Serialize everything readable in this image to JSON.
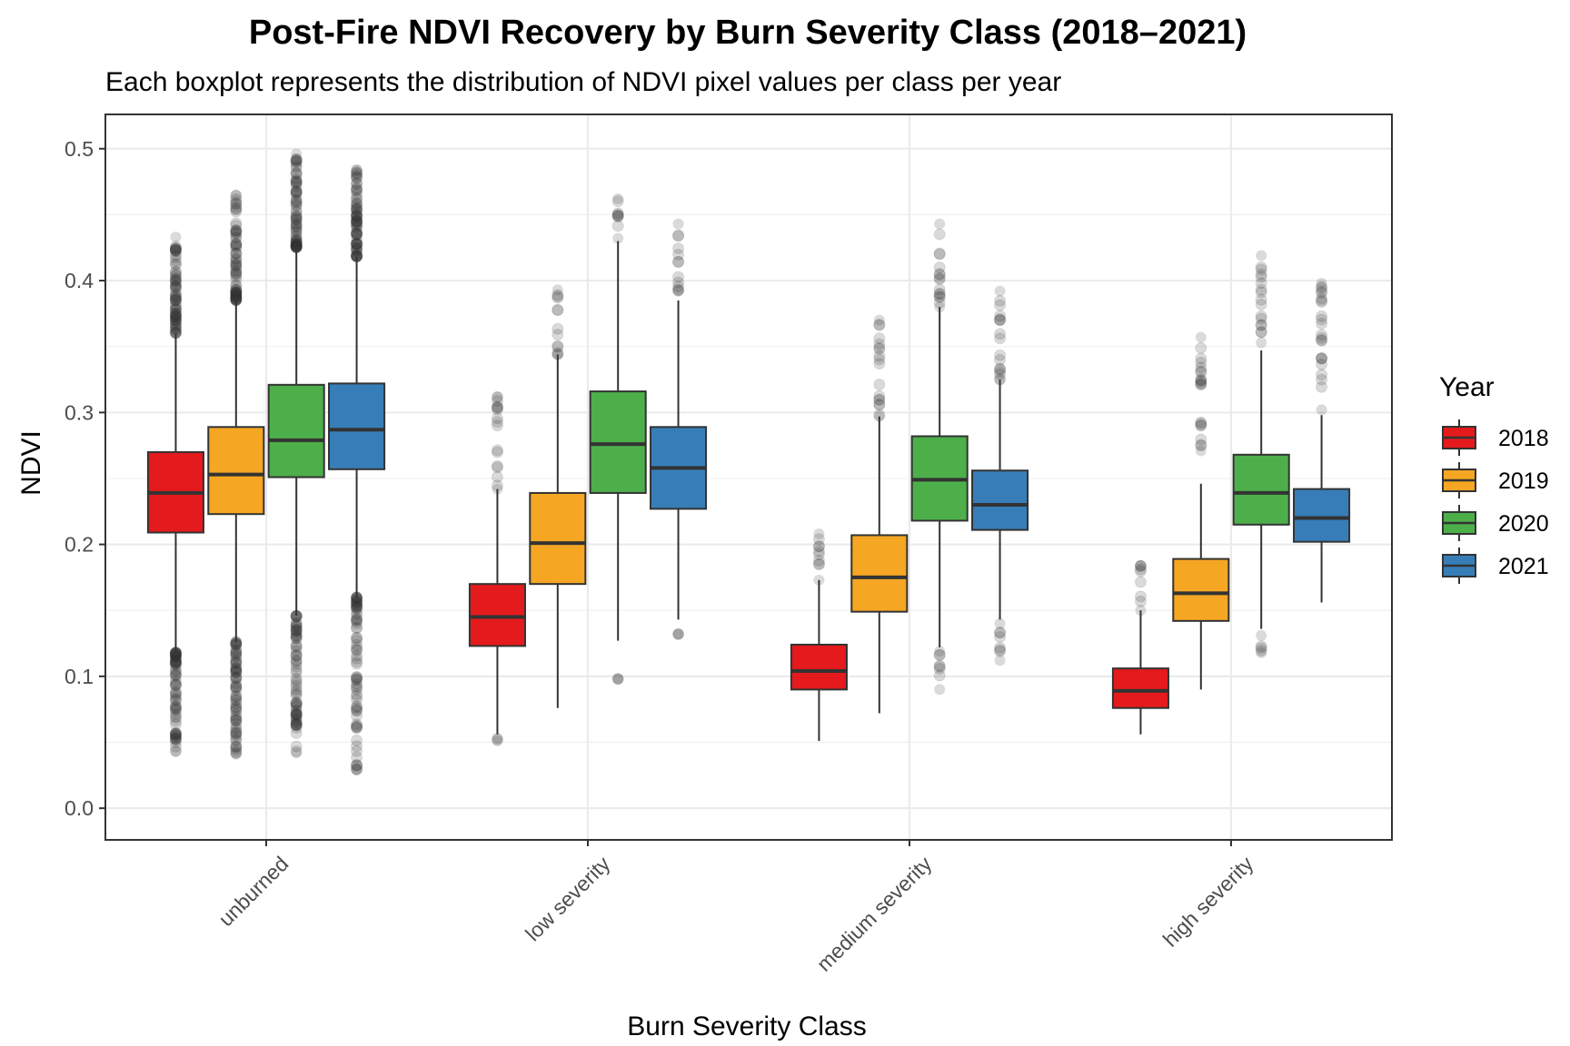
{
  "chart_data": {
    "type": "boxplot",
    "title": "Post-Fire NDVI Recovery by Burn Severity Class (2018–2021)",
    "subtitle": "Each boxplot represents the distribution of NDVI pixel values per class per year",
    "xlabel": "Burn Severity Class",
    "ylabel": "NDVI",
    "ylim": [
      -0.024,
      0.526
    ],
    "y_ticks": [
      0.0,
      0.1,
      0.2,
      0.3,
      0.4,
      0.5
    ],
    "y_tick_labels": [
      "0.0",
      "0.1",
      "0.2",
      "0.3",
      "0.4",
      "0.5"
    ],
    "grid": true,
    "categories": [
      "unburned",
      "low severity",
      "medium severity",
      "high severity"
    ],
    "legend": {
      "title": "Year",
      "position": "right",
      "entries": [
        {
          "label": "2018",
          "color": "#E41A1C"
        },
        {
          "label": "2019",
          "color": "#F5A623"
        },
        {
          "label": "2020",
          "color": "#4DAF4A"
        },
        {
          "label": "2021",
          "color": "#377EB8"
        }
      ]
    },
    "series": [
      {
        "name": "2018",
        "color": "#E41A1C",
        "boxes": [
          {
            "category": "unburned",
            "whisker_low": 0.118,
            "q1": 0.209,
            "median": 0.239,
            "q3": 0.27,
            "whisker_high": 0.36,
            "outliers_high_range": [
              0.36,
              0.433
            ],
            "outliers_low_range": [
              0.043,
              0.118
            ]
          },
          {
            "category": "low severity",
            "whisker_low": 0.056,
            "q1": 0.123,
            "median": 0.145,
            "q3": 0.17,
            "whisker_high": 0.242,
            "outliers_high_range": [
              0.242,
              0.312
            ],
            "outliers_low_range": [
              0.051,
              0.053
            ]
          },
          {
            "category": "medium severity",
            "whisker_low": 0.051,
            "q1": 0.09,
            "median": 0.104,
            "q3": 0.124,
            "whisker_high": 0.173,
            "outliers_high_range": [
              0.173,
              0.208
            ],
            "outliers_low_range": []
          },
          {
            "category": "high severity",
            "whisker_low": 0.056,
            "q1": 0.076,
            "median": 0.089,
            "q3": 0.106,
            "whisker_high": 0.15,
            "outliers_high_range": [
              0.15,
              0.184
            ],
            "outliers_low_range": []
          }
        ]
      },
      {
        "name": "2019",
        "color": "#F5A623",
        "boxes": [
          {
            "category": "unburned",
            "whisker_low": 0.126,
            "q1": 0.223,
            "median": 0.253,
            "q3": 0.289,
            "whisker_high": 0.385,
            "outliers_high_range": [
              0.385,
              0.465
            ],
            "outliers_low_range": [
              0.041,
              0.126
            ]
          },
          {
            "category": "low severity",
            "whisker_low": 0.076,
            "q1": 0.17,
            "median": 0.201,
            "q3": 0.239,
            "whisker_high": 0.344,
            "outliers_high_range": [
              0.344,
              0.393
            ],
            "outliers_low_range": []
          },
          {
            "category": "medium severity",
            "whisker_low": 0.072,
            "q1": 0.149,
            "median": 0.175,
            "q3": 0.207,
            "whisker_high": 0.297,
            "outliers_high_range": [
              0.297,
              0.37
            ],
            "outliers_low_range": []
          },
          {
            "category": "high severity",
            "whisker_low": 0.09,
            "q1": 0.142,
            "median": 0.163,
            "q3": 0.189,
            "whisker_high": 0.246,
            "outliers_high_range": [
              0.271,
              0.357
            ],
            "outliers_low_range": []
          }
        ]
      },
      {
        "name": "2020",
        "color": "#4DAF4A",
        "boxes": [
          {
            "category": "unburned",
            "whisker_low": 0.146,
            "q1": 0.251,
            "median": 0.279,
            "q3": 0.321,
            "whisker_high": 0.425,
            "outliers_high_range": [
              0.425,
              0.496
            ],
            "outliers_low_range": [
              0.042,
              0.146
            ]
          },
          {
            "category": "low severity",
            "whisker_low": 0.127,
            "q1": 0.239,
            "median": 0.276,
            "q3": 0.316,
            "whisker_high": 0.43,
            "outliers_high_range": [
              0.432,
              0.462
            ],
            "outliers_low_range": [
              0.098,
              0.098
            ]
          },
          {
            "category": "medium severity",
            "whisker_low": 0.122,
            "q1": 0.218,
            "median": 0.249,
            "q3": 0.282,
            "whisker_high": 0.38,
            "outliers_high_range": [
              0.38,
              0.443
            ],
            "outliers_low_range": [
              0.09,
              0.119
            ]
          },
          {
            "category": "high severity",
            "whisker_low": 0.136,
            "q1": 0.215,
            "median": 0.239,
            "q3": 0.268,
            "whisker_high": 0.347,
            "outliers_high_range": [
              0.353,
              0.419
            ],
            "outliers_low_range": [
              0.118,
              0.131
            ]
          }
        ]
      },
      {
        "name": "2021",
        "color": "#377EB8",
        "boxes": [
          {
            "category": "unburned",
            "whisker_low": 0.16,
            "q1": 0.257,
            "median": 0.287,
            "q3": 0.322,
            "whisker_high": 0.418,
            "outliers_high_range": [
              0.418,
              0.484
            ],
            "outliers_low_range": [
              0.029,
              0.16
            ]
          },
          {
            "category": "low severity",
            "whisker_low": 0.143,
            "q1": 0.227,
            "median": 0.258,
            "q3": 0.289,
            "whisker_high": 0.385,
            "outliers_high_range": [
              0.392,
              0.443
            ],
            "outliers_low_range": [
              0.132,
              0.132
            ]
          },
          {
            "category": "medium severity",
            "whisker_low": 0.143,
            "q1": 0.211,
            "median": 0.23,
            "q3": 0.256,
            "whisker_high": 0.325,
            "outliers_high_range": [
              0.325,
              0.392
            ],
            "outliers_low_range": [
              0.112,
              0.14
            ]
          },
          {
            "category": "high severity",
            "whisker_low": 0.156,
            "q1": 0.202,
            "median": 0.22,
            "q3": 0.242,
            "whisker_high": 0.298,
            "outliers_high_range": [
              0.302,
              0.398
            ],
            "outliers_low_range": []
          }
        ]
      }
    ]
  }
}
